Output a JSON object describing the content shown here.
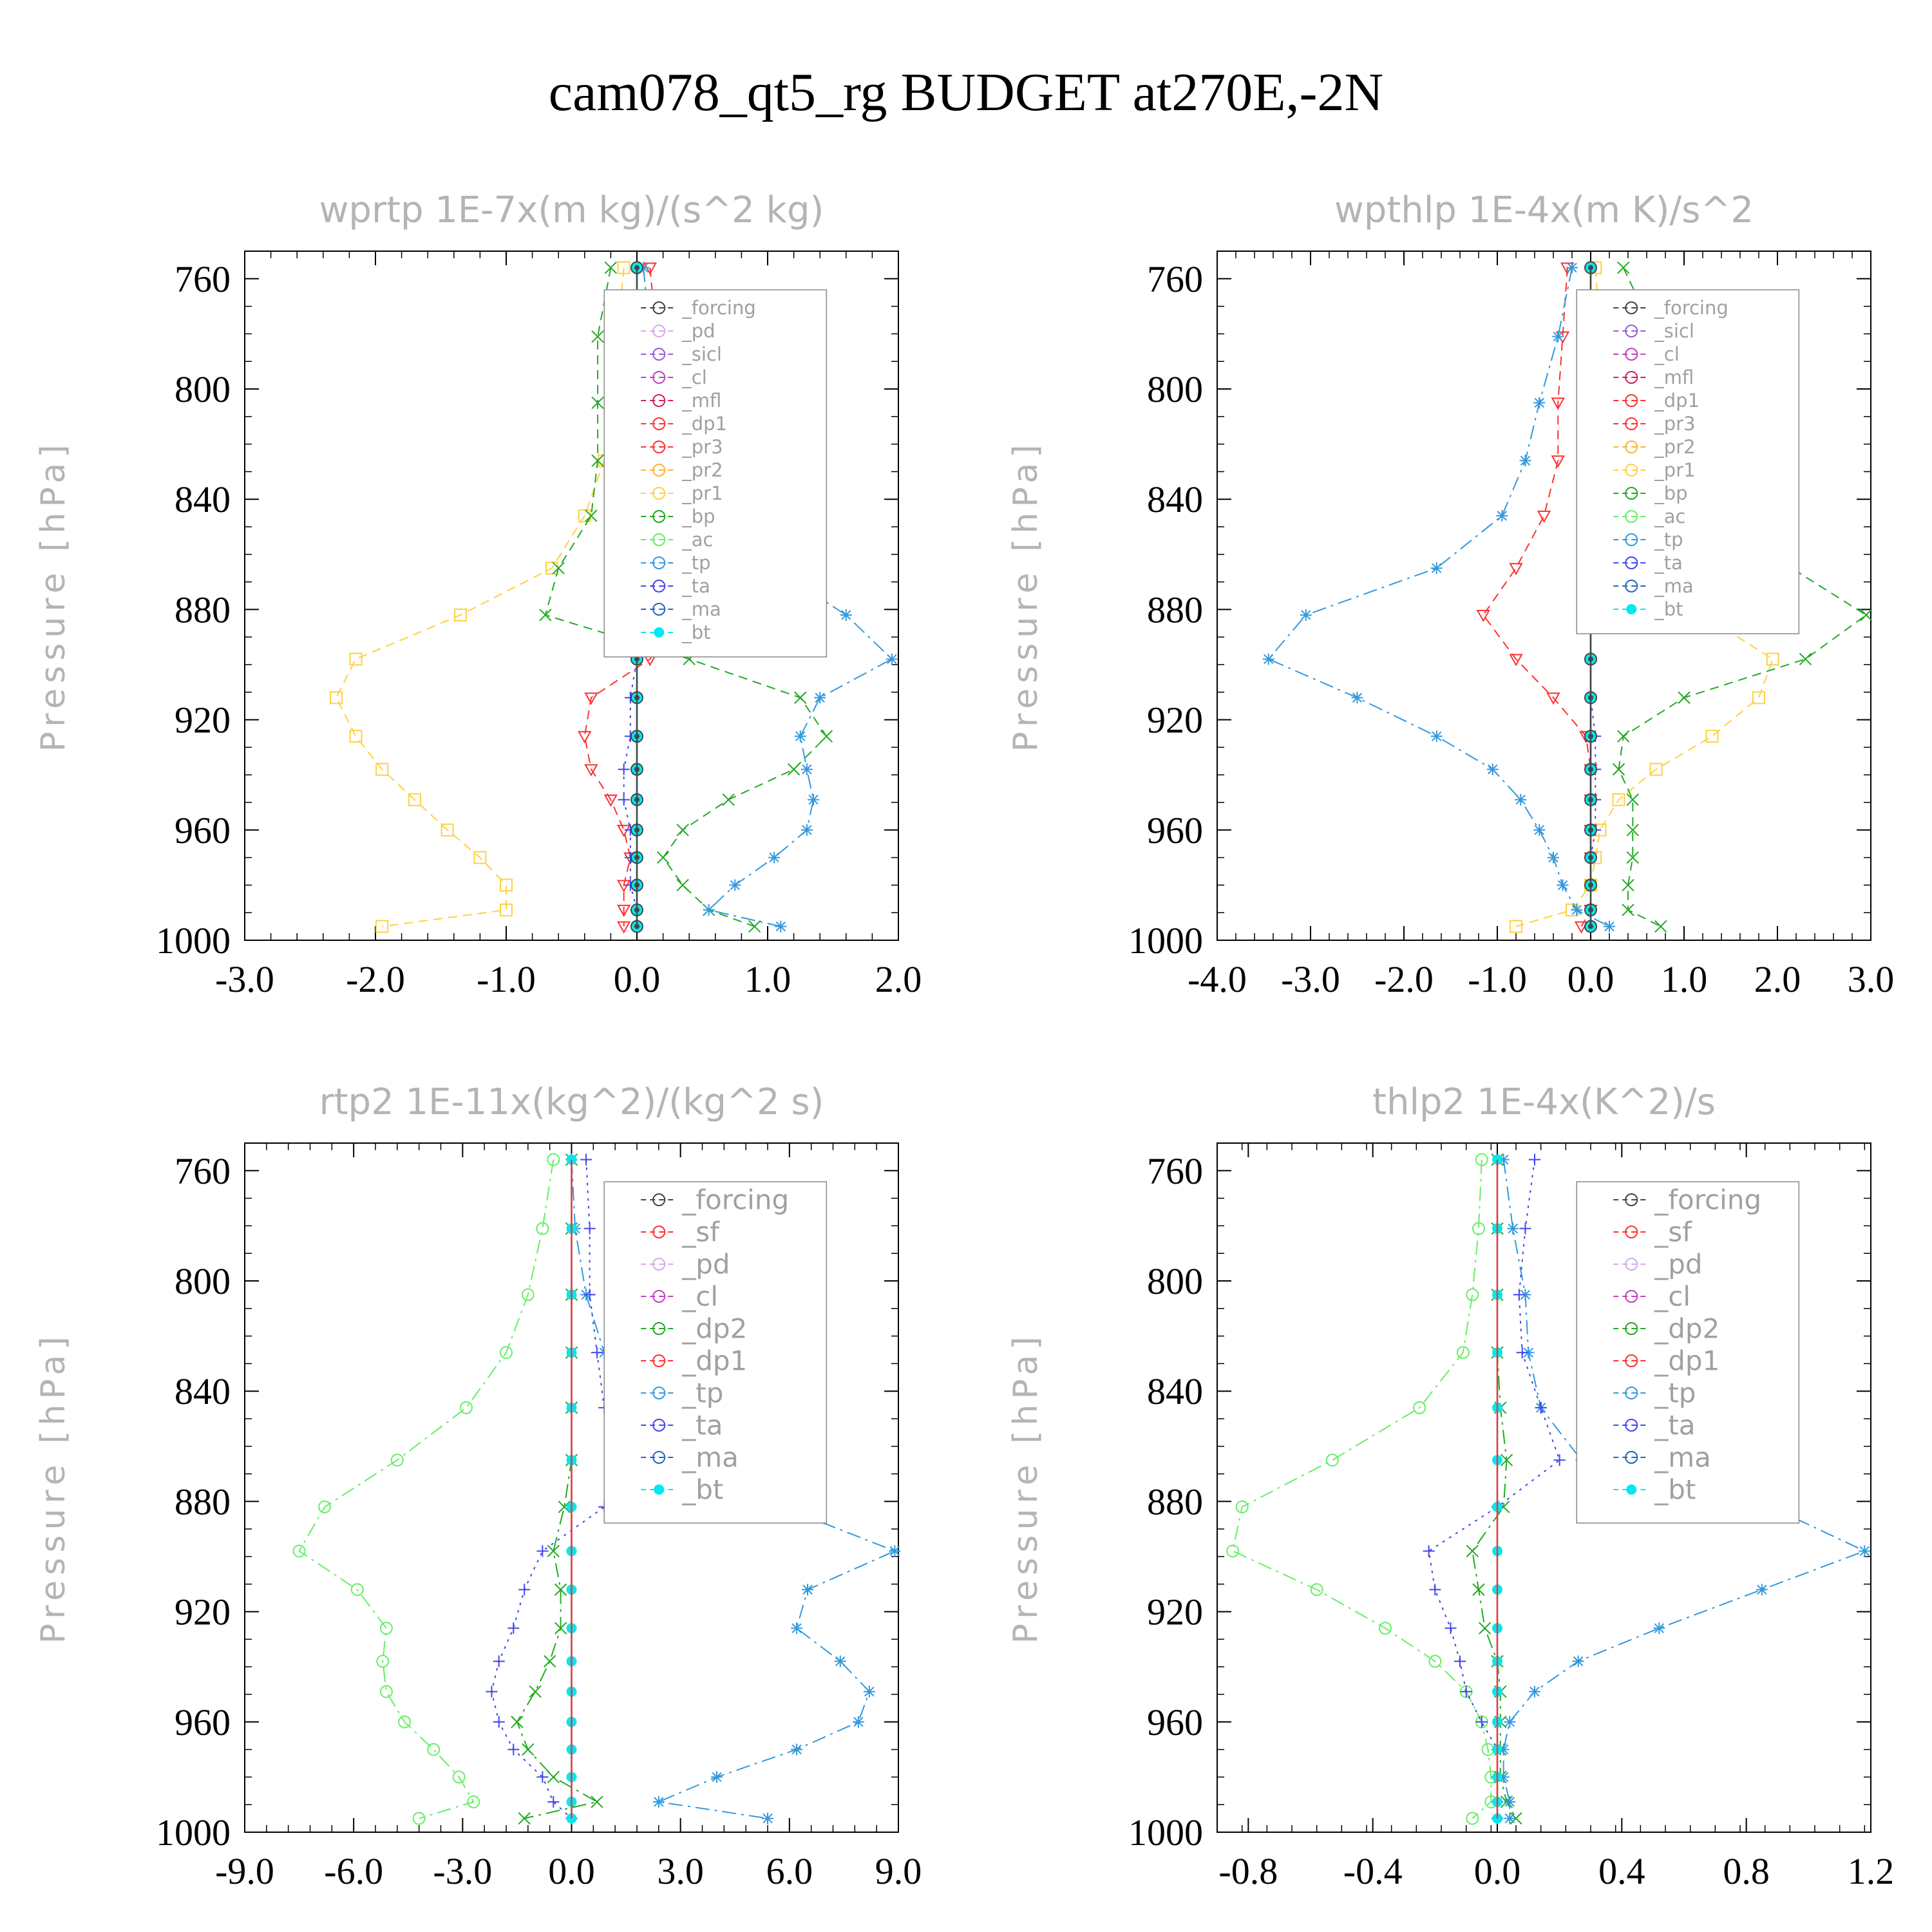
{
  "title": "cam078_qt5_rg  BUDGET at270E,-2N",
  "colors": {
    "forcing_grey": "#444444",
    "pd": "#d8a8e8",
    "sicl": "#9a5ad8",
    "cl_purple": "#c040c0",
    "mfl": "#d02060",
    "red": "#ff3030",
    "orange": "#ffb030",
    "yellow": "#ffd040",
    "green": "#22aa22",
    "lightgreen": "#66ee66",
    "blue": "#3399dd",
    "navy": "#4444ee",
    "ma": "#2266bb",
    "bt": "#00e8f0"
  },
  "chart_data": [
    {
      "type": "line",
      "title": "wprtp   1E-7x(m kg)/(s^2 kg)",
      "ylabel": "Pressure [hPa]",
      "xlim": [
        -3.0,
        2.0
      ],
      "xticks": [
        "-3.0",
        "-2.0",
        "-1.0",
        "0.0",
        "1.0",
        "2.0"
      ],
      "xtick_values": [
        -3,
        -2,
        -1,
        0,
        1,
        2
      ],
      "ylim": [
        1000,
        750
      ],
      "yticks": [
        "760",
        "800",
        "840",
        "880",
        "920",
        "960",
        "1000"
      ],
      "ytick_values": [
        760,
        800,
        840,
        880,
        920,
        960,
        1000
      ],
      "levels": [
        756,
        781,
        805,
        826,
        846,
        865,
        882,
        898,
        912,
        926,
        938,
        949,
        960,
        970,
        980,
        989,
        995
      ],
      "legend": [
        "_forcing",
        "_pd",
        "_sicl",
        "_cl",
        "_mfl",
        "_dp1",
        "_pr3",
        "_pr2",
        "_pr1",
        "_bp",
        "_ac",
        "_tp",
        "_ta",
        "_ma",
        "_bt"
      ],
      "series": [
        {
          "name": "_pr3",
          "color": "red",
          "dash": "dashed",
          "marker": "tri-down",
          "values": [
            0.1,
            0.15,
            0.2,
            0.15,
            0.25,
            0.3,
            0.35,
            0.1,
            -0.35,
            -0.4,
            -0.35,
            -0.2,
            -0.1,
            -0.05,
            -0.1,
            -0.1,
            -0.1
          ]
        },
        {
          "name": "_pr1",
          "color": "yellow",
          "dash": "dashed",
          "marker": "square",
          "values": [
            -0.1,
            -0.15,
            -0.2,
            -0.25,
            -0.4,
            -0.65,
            -1.35,
            -2.15,
            -2.3,
            -2.15,
            -1.95,
            -1.7,
            -1.45,
            -1.2,
            -1.0,
            -1.0,
            -1.95
          ]
        },
        {
          "name": "_bp",
          "color": "green",
          "dash": "dashed",
          "marker": "x",
          "values": [
            -0.2,
            -0.3,
            -0.3,
            -0.3,
            -0.35,
            -0.6,
            -0.7,
            0.4,
            1.25,
            1.45,
            1.2,
            0.7,
            0.35,
            0.2,
            0.35,
            0.55,
            0.9
          ]
        },
        {
          "name": "_tp",
          "color": "blue",
          "dash": "dashdot",
          "marker": "asterisk",
          "values": [
            0.05,
            0.1,
            0.3,
            0.5,
            0.9,
            1.05,
            1.6,
            1.95,
            1.4,
            1.25,
            1.3,
            1.35,
            1.3,
            1.05,
            0.75,
            0.55,
            1.1
          ]
        },
        {
          "name": "_ta",
          "color": "navy",
          "dash": "dotted",
          "marker": "plus",
          "values": [
            0.0,
            0.0,
            0.0,
            0.0,
            0.0,
            0.0,
            0.0,
            0.0,
            -0.05,
            -0.05,
            -0.1,
            -0.1,
            -0.05,
            -0.05,
            -0.05,
            0.0,
            0.0
          ]
        },
        {
          "name": "_bt",
          "color": "bt",
          "dash": "solid",
          "marker": "dot",
          "values": [
            0,
            0,
            0,
            0,
            0,
            0,
            0,
            0,
            0,
            0,
            0,
            0,
            0,
            0,
            0,
            0,
            0
          ]
        },
        {
          "name": "_forcing",
          "color": "forcing_grey",
          "dash": "solid",
          "marker": "circle-dot",
          "values": [
            0,
            0,
            0,
            0,
            0,
            0,
            0,
            0,
            0,
            0,
            0,
            0,
            0,
            0,
            0,
            0,
            0
          ]
        }
      ]
    },
    {
      "type": "line",
      "title": "wpthlp   1E-4x(m K)/s^2",
      "ylabel": "Pressure [hPa]",
      "xlim": [
        -4.0,
        3.0
      ],
      "xticks": [
        "-4.0",
        "-3.0",
        "-2.0",
        "-1.0",
        "0.0",
        "1.0",
        "2.0",
        "3.0"
      ],
      "xtick_values": [
        -4,
        -3,
        -2,
        -1,
        0,
        1,
        2,
        3
      ],
      "ylim": [
        1000,
        750
      ],
      "yticks": [
        "760",
        "800",
        "840",
        "880",
        "920",
        "960",
        "1000"
      ],
      "ytick_values": [
        760,
        800,
        840,
        880,
        920,
        960,
        1000
      ],
      "levels": [
        756,
        781,
        805,
        826,
        846,
        865,
        882,
        898,
        912,
        926,
        938,
        949,
        960,
        970,
        980,
        989,
        995
      ],
      "legend": [
        "_forcing",
        "_sicl",
        "_cl",
        "_mfl",
        "_dp1",
        "_pr3",
        "_pr2",
        "_pr1",
        "_bp",
        "_ac",
        "_tp",
        "_ta",
        "_ma",
        "_bt"
      ],
      "series": [
        {
          "name": "_pr3",
          "color": "red",
          "dash": "dashed",
          "marker": "tri-down",
          "values": [
            -0.25,
            -0.3,
            -0.35,
            -0.35,
            -0.5,
            -0.8,
            -1.15,
            -0.8,
            -0.4,
            -0.05,
            0.0,
            0.0,
            0.0,
            0.0,
            0.0,
            0.0,
            -0.1
          ]
        },
        {
          "name": "_pr1",
          "color": "yellow",
          "dash": "dashed",
          "marker": "square",
          "values": [
            0.05,
            0.1,
            0.2,
            0.2,
            0.25,
            0.45,
            1.2,
            1.95,
            1.8,
            1.3,
            0.7,
            0.3,
            0.1,
            0.05,
            0.0,
            -0.2,
            -0.8
          ]
        },
        {
          "name": "_bp",
          "color": "green",
          "dash": "dashed",
          "marker": "x",
          "values": [
            0.35,
            0.7,
            0.8,
            1.1,
            1.6,
            2.15,
            2.95,
            2.3,
            1.0,
            0.35,
            0.3,
            0.45,
            0.45,
            0.45,
            0.4,
            0.4,
            0.75
          ]
        },
        {
          "name": "_tp",
          "color": "blue",
          "dash": "dashdot",
          "marker": "asterisk",
          "values": [
            -0.2,
            -0.35,
            -0.55,
            -0.7,
            -0.95,
            -1.65,
            -3.05,
            -3.45,
            -2.5,
            -1.65,
            -1.05,
            -0.75,
            -0.55,
            -0.4,
            -0.3,
            -0.15,
            0.2
          ]
        },
        {
          "name": "_ta",
          "color": "navy",
          "dash": "dotted",
          "marker": "plus",
          "values": [
            0.0,
            0.0,
            0.0,
            0.0,
            0.0,
            0.0,
            0.0,
            0.0,
            0.0,
            0.05,
            0.05,
            0.05,
            0.05,
            0.0,
            0.0,
            0.0,
            0.0
          ]
        },
        {
          "name": "_bt",
          "color": "bt",
          "dash": "solid",
          "marker": "dot",
          "values": [
            0,
            0,
            0,
            0,
            0,
            0,
            0,
            0,
            0,
            0,
            0,
            0,
            0,
            0,
            0,
            0,
            0
          ]
        },
        {
          "name": "_forcing",
          "color": "forcing_grey",
          "dash": "solid",
          "marker": "circle-dot",
          "values": [
            0,
            0,
            0,
            0,
            0,
            0,
            0,
            0,
            0,
            0,
            0,
            0,
            0,
            0,
            0,
            0,
            0
          ]
        }
      ]
    },
    {
      "type": "line",
      "title": "rtp2   1E-11x(kg^2)/(kg^2 s)",
      "ylabel": "Pressure [hPa]",
      "xlim": [
        -9.0,
        9.0
      ],
      "xticks": [
        "-9.0",
        "-6.0",
        "-3.0",
        "0.0",
        "3.0",
        "6.0",
        "9.0"
      ],
      "xtick_values": [
        -9,
        -6,
        -3,
        0,
        3,
        6,
        9
      ],
      "ylim": [
        1000,
        750
      ],
      "yticks": [
        "760",
        "800",
        "840",
        "880",
        "920",
        "960",
        "1000"
      ],
      "ytick_values": [
        760,
        800,
        840,
        880,
        920,
        960,
        1000
      ],
      "levels": [
        756,
        781,
        805,
        826,
        846,
        865,
        882,
        898,
        912,
        926,
        938,
        949,
        960,
        970,
        980,
        989,
        995
      ],
      "legend": [
        "_forcing",
        "_sf",
        "_pd",
        "_cl",
        "_dp2",
        "_dp1",
        "_tp",
        "_ta",
        "_ma",
        "_bt"
      ],
      "series": [
        {
          "name": "_dp1",
          "color": "lightgreen",
          "dash": "dashdot",
          "marker": "circle",
          "values": [
            -0.5,
            -0.8,
            -1.2,
            -1.8,
            -2.9,
            -4.8,
            -6.8,
            -7.5,
            -5.9,
            -5.1,
            -5.2,
            -5.1,
            -4.6,
            -3.8,
            -3.1,
            -2.7,
            -4.2
          ]
        },
        {
          "name": "_dp2",
          "color": "green",
          "dash": "dashdot",
          "marker": "x",
          "values": [
            0.0,
            0.0,
            0.0,
            0.0,
            0.0,
            0.0,
            -0.2,
            -0.5,
            -0.3,
            -0.3,
            -0.6,
            -1.0,
            -1.5,
            -1.2,
            -0.5,
            0.7,
            -1.3
          ]
        },
        {
          "name": "_tp",
          "color": "blue",
          "dash": "dashdot",
          "marker": "asterisk",
          "values": [
            0.0,
            0.1,
            0.4,
            0.9,
            1.6,
            2.8,
            5.8,
            8.9,
            6.5,
            6.2,
            7.4,
            8.2,
            7.9,
            6.2,
            4.0,
            2.4,
            5.4
          ]
        },
        {
          "name": "_ta",
          "color": "navy",
          "dash": "dotted",
          "marker": "plus",
          "values": [
            0.4,
            0.5,
            0.5,
            0.7,
            0.9,
            1.4,
            0.9,
            -0.8,
            -1.3,
            -1.6,
            -2.0,
            -2.2,
            -2.0,
            -1.6,
            -0.8,
            -0.5,
            0.0
          ]
        },
        {
          "name": "_bt",
          "color": "bt",
          "dash": "solid",
          "marker": "dot",
          "values": [
            0,
            0,
            0,
            0,
            0,
            0,
            0,
            0,
            0,
            0,
            0,
            0,
            0,
            0,
            0,
            0,
            0
          ]
        },
        {
          "name": "_forcing",
          "color": "red",
          "dash": "solid",
          "marker": "none",
          "values": [
            0,
            0,
            0,
            0,
            0,
            0,
            0,
            0,
            0,
            0,
            0,
            0,
            0,
            0,
            0,
            0,
            0
          ]
        }
      ]
    },
    {
      "type": "line",
      "title": "thlp2   1E-4x(K^2)/s",
      "ylabel": "Pressure [hPa]",
      "xlim": [
        -0.9,
        1.2
      ],
      "xticks": [
        "-0.8",
        "-0.4",
        "0.0",
        "0.4",
        "0.8",
        "1.2"
      ],
      "xtick_values": [
        -0.8,
        -0.4,
        0.0,
        0.4,
        0.8,
        1.2
      ],
      "ylim": [
        1000,
        750
      ],
      "yticks": [
        "760",
        "800",
        "840",
        "880",
        "920",
        "960",
        "1000"
      ],
      "ytick_values": [
        760,
        800,
        840,
        880,
        920,
        960,
        1000
      ],
      "levels": [
        756,
        781,
        805,
        826,
        846,
        865,
        882,
        898,
        912,
        926,
        938,
        949,
        960,
        970,
        980,
        989,
        995
      ],
      "legend": [
        "_forcing",
        "_sf",
        "_pd",
        "_cl",
        "_dp2",
        "_dp1",
        "_tp",
        "_ta",
        "_ma",
        "_bt"
      ],
      "series": [
        {
          "name": "_dp1",
          "color": "lightgreen",
          "dash": "dashdot",
          "marker": "circle",
          "values": [
            -0.05,
            -0.06,
            -0.08,
            -0.11,
            -0.25,
            -0.53,
            -0.82,
            -0.85,
            -0.58,
            -0.36,
            -0.2,
            -0.1,
            -0.05,
            -0.03,
            -0.02,
            -0.02,
            -0.08
          ]
        },
        {
          "name": "_dp2",
          "color": "green",
          "dash": "dashdot",
          "marker": "x",
          "values": [
            0.0,
            0.0,
            0.0,
            0.0,
            0.01,
            0.03,
            0.02,
            -0.08,
            -0.06,
            -0.04,
            0.0,
            0.01,
            0.01,
            0.01,
            0.01,
            0.03,
            0.06
          ]
        },
        {
          "name": "_tp",
          "color": "blue",
          "dash": "dashdot",
          "marker": "asterisk",
          "values": [
            0.02,
            0.05,
            0.09,
            0.1,
            0.14,
            0.27,
            0.88,
            1.18,
            0.85,
            0.52,
            0.26,
            0.12,
            0.04,
            0.02,
            0.02,
            0.04,
            0.04
          ]
        },
        {
          "name": "_ta",
          "color": "navy",
          "dash": "dotted",
          "marker": "plus",
          "values": [
            0.12,
            0.09,
            0.07,
            0.08,
            0.14,
            0.2,
            0.0,
            -0.22,
            -0.2,
            -0.15,
            -0.12,
            -0.1,
            -0.05,
            0.0,
            0.0,
            0.0,
            0.0
          ]
        },
        {
          "name": "_bt",
          "color": "bt",
          "dash": "solid",
          "marker": "dot",
          "values": [
            0,
            0,
            0,
            0,
            0,
            0,
            0,
            0,
            0,
            0,
            0,
            0,
            0,
            0,
            0,
            0,
            0
          ]
        },
        {
          "name": "_forcing",
          "color": "red",
          "dash": "solid",
          "marker": "none",
          "values": [
            0,
            0,
            0,
            0,
            0,
            0,
            0,
            0,
            0,
            0,
            0,
            0,
            0,
            0,
            0,
            0,
            0
          ]
        }
      ]
    }
  ]
}
